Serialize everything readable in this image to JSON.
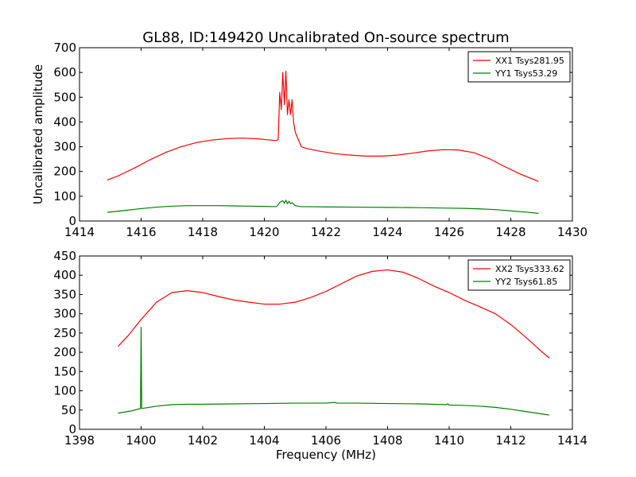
{
  "figure_title": "GL88, ID:149420 Uncalibrated On-source spectrum",
  "colors": {
    "xx": "#ff0000",
    "yy": "#008000",
    "axis": "#000000"
  },
  "chart_data": [
    {
      "type": "line",
      "title": "GL88, ID:149420 Uncalibrated On-source spectrum",
      "xlabel": "",
      "ylabel": "Uncalibrated amplitude",
      "xlim": [
        1414,
        1430
      ],
      "ylim": [
        0,
        700
      ],
      "xticks": [
        1414,
        1416,
        1418,
        1420,
        1422,
        1424,
        1426,
        1428,
        1430
      ],
      "yticks": [
        0,
        100,
        200,
        300,
        400,
        500,
        600,
        700
      ],
      "legend_position": "top-right",
      "series": [
        {
          "name": "XX1 Tsys281.95",
          "color": "#ff0000",
          "x": [
            1414.9,
            1415.3,
            1415.8,
            1416.3,
            1416.8,
            1417.3,
            1417.8,
            1418.3,
            1418.8,
            1419.3,
            1419.8,
            1420.2,
            1420.4,
            1420.45,
            1420.5,
            1420.55,
            1420.6,
            1420.65,
            1420.7,
            1420.75,
            1420.8,
            1420.85,
            1420.9,
            1420.95,
            1421.0,
            1421.1,
            1421.2,
            1421.4,
            1421.8,
            1422.3,
            1422.8,
            1423.3,
            1423.8,
            1424.3,
            1424.8,
            1425.3,
            1425.8,
            1426.3,
            1426.8,
            1427.3,
            1427.8,
            1428.3,
            1428.9
          ],
          "y": [
            165,
            185,
            215,
            248,
            277,
            300,
            317,
            327,
            333,
            335,
            332,
            327,
            325,
            330,
            520,
            450,
            600,
            470,
            605,
            430,
            490,
            430,
            490,
            400,
            360,
            330,
            300,
            292,
            282,
            272,
            266,
            262,
            262,
            266,
            274,
            283,
            288,
            287,
            276,
            252,
            220,
            190,
            160
          ]
        },
        {
          "name": "YY1 Tsys53.29",
          "color": "#008000",
          "x": [
            1414.9,
            1415.5,
            1416.0,
            1416.5,
            1417.0,
            1417.5,
            1418.0,
            1418.5,
            1419.0,
            1419.5,
            1420.0,
            1420.4,
            1420.5,
            1420.6,
            1420.65,
            1420.7,
            1420.75,
            1420.8,
            1420.85,
            1420.9,
            1421.0,
            1421.2,
            1422.0,
            1423.0,
            1424.0,
            1425.0,
            1426.0,
            1426.5,
            1427.0,
            1427.5,
            1428.0,
            1428.5,
            1428.9
          ],
          "y": [
            35,
            43,
            50,
            56,
            60,
            62,
            62,
            62,
            61,
            60,
            59,
            58,
            75,
            82,
            72,
            84,
            70,
            80,
            70,
            74,
            62,
            58,
            57,
            56,
            55,
            54,
            52,
            51,
            49,
            46,
            41,
            36,
            31
          ]
        }
      ]
    },
    {
      "type": "line",
      "title": "",
      "xlabel": "Frequency (MHz)",
      "ylabel": "",
      "xlim": [
        1398,
        1414
      ],
      "ylim": [
        0,
        450
      ],
      "xticks": [
        1398,
        1400,
        1402,
        1404,
        1406,
        1408,
        1410,
        1412,
        1414
      ],
      "yticks": [
        0,
        50,
        100,
        150,
        200,
        250,
        300,
        350,
        400,
        450
      ],
      "legend_position": "top-right",
      "series": [
        {
          "name": "XX2 Tsys333.62",
          "color": "#ff0000",
          "x": [
            1399.25,
            1399.6,
            1400.0,
            1400.5,
            1401.0,
            1401.5,
            1402.0,
            1402.5,
            1403.0,
            1403.5,
            1404.0,
            1404.5,
            1405.0,
            1405.5,
            1406.0,
            1406.5,
            1407.0,
            1407.5,
            1408.0,
            1408.5,
            1409.0,
            1409.5,
            1410.0,
            1410.5,
            1411.0,
            1411.5,
            1412.0,
            1412.5,
            1413.0,
            1413.25
          ],
          "y": [
            215,
            245,
            285,
            330,
            355,
            360,
            355,
            345,
            336,
            330,
            325,
            325,
            330,
            342,
            358,
            378,
            398,
            410,
            414,
            408,
            392,
            372,
            355,
            335,
            318,
            300,
            272,
            238,
            202,
            185
          ]
        },
        {
          "name": "YY2 Tsys61.85",
          "color": "#008000",
          "x": [
            1399.25,
            1399.7,
            1399.98,
            1400.0,
            1400.02,
            1400.5,
            1401.0,
            1401.5,
            1402.0,
            1403.0,
            1404.0,
            1405.0,
            1406.0,
            1406.3,
            1406.35,
            1406.4,
            1407.0,
            1408.0,
            1409.0,
            1409.9,
            1409.95,
            1410.0,
            1410.5,
            1411.0,
            1411.5,
            1412.0,
            1412.5,
            1413.0,
            1413.25
          ],
          "y": [
            42,
            48,
            54,
            265,
            54,
            60,
            64,
            65,
            65,
            66,
            67,
            68,
            68,
            70,
            68,
            68,
            68,
            67,
            66,
            64,
            66,
            63,
            62,
            60,
            57,
            52,
            46,
            40,
            37
          ]
        }
      ]
    }
  ]
}
